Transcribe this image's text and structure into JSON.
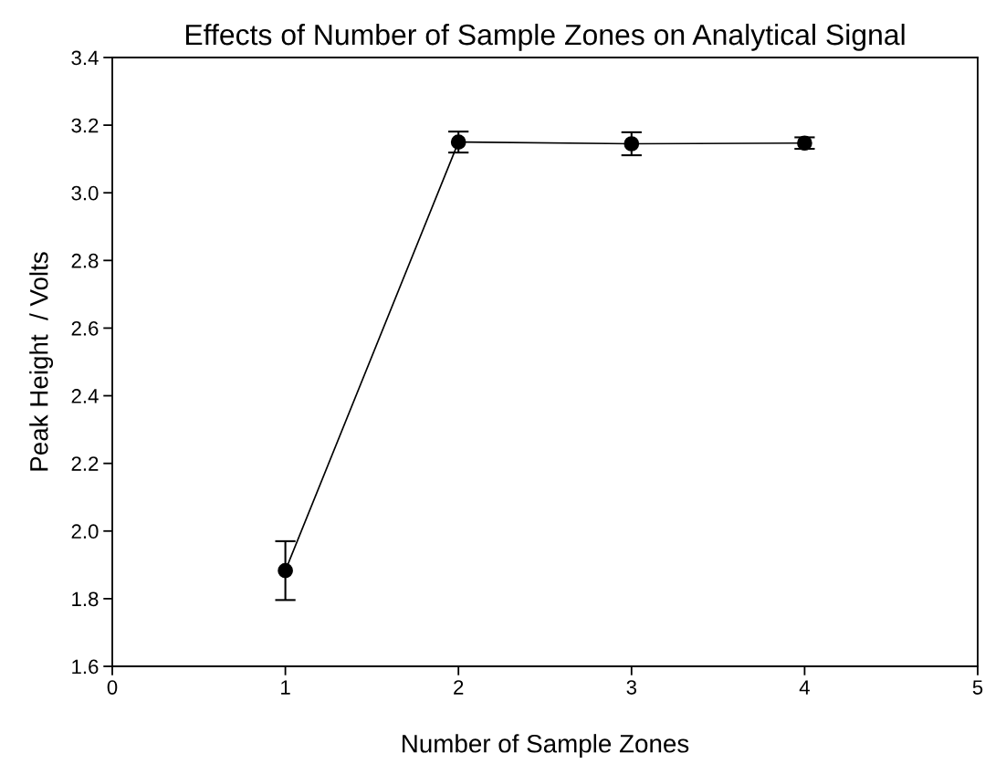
{
  "chart_data": {
    "type": "line",
    "title": "Effects of Number of Sample Zones on Analytical Signal",
    "xlabel": "Number of Sample Zones",
    "ylabel": "Peak Height  / Volts",
    "x": [
      1,
      2,
      3,
      4
    ],
    "values": [
      1.883,
      3.15,
      3.145,
      3.147
    ],
    "errors": [
      0.087,
      0.031,
      0.034,
      0.017
    ],
    "color": "#000000",
    "marker": "circle",
    "line_style": "solid",
    "xlim": [
      0,
      5
    ],
    "xticks": [
      0,
      1,
      2,
      3,
      4,
      5
    ],
    "ylim": [
      1.6,
      3.4
    ],
    "yticks": [
      {
        "value": 1.6,
        "label": "1.6"
      },
      {
        "value": 1.8,
        "label": "1.8"
      },
      {
        "value": 2.0,
        "label": "2.0"
      },
      {
        "value": 2.2,
        "label": "2.2"
      },
      {
        "value": 2.4,
        "label": "2.4"
      },
      {
        "value": 2.6,
        "label": "2.6"
      },
      {
        "value": 2.8,
        "label": "2.8"
      },
      {
        "value": 3.0,
        "label": "3.0"
      },
      {
        "value": 3.2,
        "label": "3.2"
      },
      {
        "value": 3.4,
        "label": "3.4"
      }
    ],
    "grid": false
  }
}
